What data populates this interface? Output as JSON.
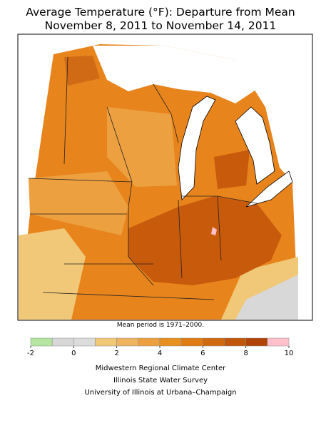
{
  "header": {
    "title_lines": [
      "Average Temperature (°F): Departure from Mean",
      "November 8, 2011 to November 14, 2011"
    ]
  },
  "note": "Mean period is 1971–2000.",
  "legend": {
    "bins": [
      -2,
      -1,
      0,
      1,
      2,
      3,
      4,
      5,
      6,
      7,
      8,
      9,
      10
    ],
    "colors": [
      "#b4e6a0",
      "#d8d8d8",
      "#dcdcdc",
      "#f0c878",
      "#eeb460",
      "#eca040",
      "#e8901e",
      "#e07c14",
      "#d06a10",
      "#c0560a",
      "#b04404",
      "#ffc0cb"
    ],
    "ticks": [
      -2,
      0,
      2,
      4,
      6,
      8,
      10
    ]
  },
  "credits": [
    "Midwestern Regional Climate Center",
    "Illinois State Water Survey",
    "University of Illinois at Urbana–Champaign"
  ]
}
